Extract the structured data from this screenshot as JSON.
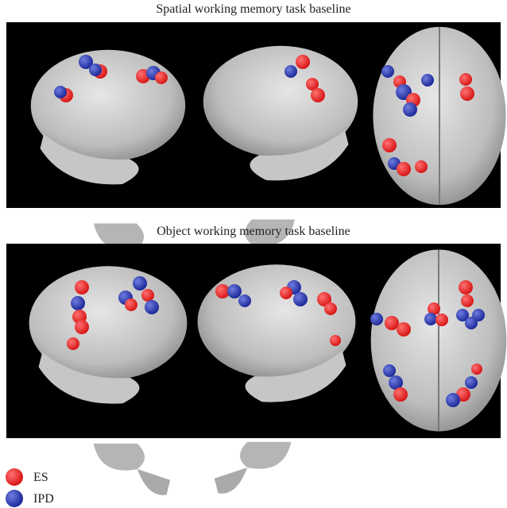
{
  "panels": [
    {
      "title": "Spatial working memory task baseline"
    },
    {
      "title": "Object working memory task baseline"
    }
  ],
  "legend": [
    {
      "label": "ES"
    },
    {
      "label": "IPD"
    }
  ]
}
